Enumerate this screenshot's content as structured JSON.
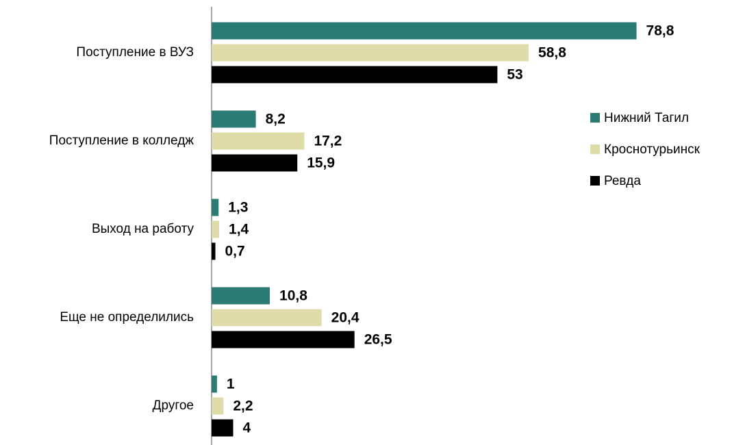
{
  "chart_data": {
    "type": "bar",
    "orientation": "horizontal",
    "categories": [
      "Поступление в ВУЗ",
      "Поступление в колледж",
      "Выход на работу",
      "Еще не определились",
      "Другое"
    ],
    "series": [
      {
        "name": "Нижний Тагил",
        "color": "#2a7b73",
        "values": [
          78.8,
          8.2,
          1.3,
          10.8,
          1
        ],
        "value_labels": [
          "78,8",
          "8,2",
          "1,3",
          "10,8",
          "1"
        ]
      },
      {
        "name": "Кроснотурьинск",
        "color": "#e0dcaa",
        "values": [
          58.8,
          17.2,
          1.4,
          20.4,
          2.2
        ],
        "value_labels": [
          "58,8",
          "17,2",
          "1,4",
          "20,4",
          "2,2"
        ]
      },
      {
        "name": "Ревда",
        "color": "#000000",
        "values": [
          53,
          15.9,
          0.7,
          26.5,
          4
        ],
        "value_labels": [
          "53",
          "15,9",
          "0,7",
          "26,5",
          "4"
        ]
      }
    ],
    "xlim": [
      0,
      80
    ],
    "legend": "right"
  }
}
